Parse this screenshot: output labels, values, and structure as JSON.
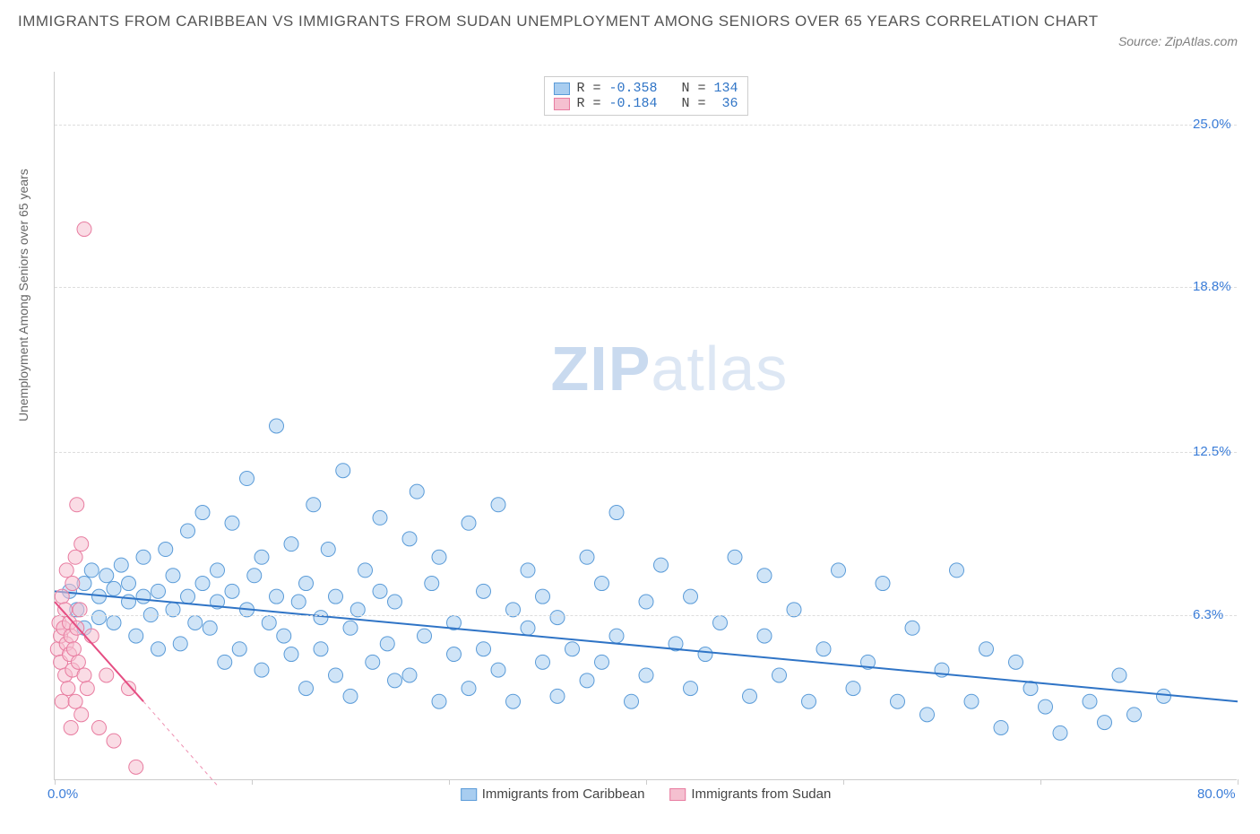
{
  "title": "IMMIGRANTS FROM CARIBBEAN VS IMMIGRANTS FROM SUDAN UNEMPLOYMENT AMONG SENIORS OVER 65 YEARS CORRELATION CHART",
  "source": "Source: ZipAtlas.com",
  "y_axis_label": "Unemployment Among Seniors over 65 years",
  "watermark_bold": "ZIP",
  "watermark_light": "atlas",
  "chart": {
    "type": "scatter",
    "xlim": [
      0,
      80
    ],
    "ylim": [
      0,
      27
    ],
    "x_ticks": [
      0,
      13.33,
      26.67,
      40,
      53.33,
      66.67,
      80
    ],
    "x_tick_labels": {
      "0": "0.0%",
      "80": "80.0%"
    },
    "y_ticks": [
      6.3,
      12.5,
      18.8,
      25.0
    ],
    "y_tick_labels": [
      "6.3%",
      "12.5%",
      "18.8%",
      "25.0%"
    ],
    "grid_color": "#dddddd",
    "background_color": "#ffffff",
    "axis_color": "#cccccc",
    "marker_radius": 8,
    "marker_opacity": 0.55,
    "series": [
      {
        "name": "Immigrants from Caribbean",
        "color_fill": "#a8cdf0",
        "color_stroke": "#5a9bd8",
        "trend_color": "#2f74c6",
        "trend_width": 2,
        "R": "-0.358",
        "N": "134",
        "trend": {
          "x1": 0,
          "y1": 7.2,
          "x2": 80,
          "y2": 3.0
        },
        "points": [
          [
            1,
            7.2
          ],
          [
            1.5,
            6.5
          ],
          [
            2,
            7.5
          ],
          [
            2,
            5.8
          ],
          [
            2.5,
            8.0
          ],
          [
            3,
            7.0
          ],
          [
            3,
            6.2
          ],
          [
            3.5,
            7.8
          ],
          [
            4,
            7.3
          ],
          [
            4,
            6.0
          ],
          [
            4.5,
            8.2
          ],
          [
            5,
            6.8
          ],
          [
            5,
            7.5
          ],
          [
            5.5,
            5.5
          ],
          [
            6,
            7.0
          ],
          [
            6,
            8.5
          ],
          [
            6.5,
            6.3
          ],
          [
            7,
            7.2
          ],
          [
            7,
            5.0
          ],
          [
            7.5,
            8.8
          ],
          [
            8,
            6.5
          ],
          [
            8,
            7.8
          ],
          [
            8.5,
            5.2
          ],
          [
            9,
            7.0
          ],
          [
            9,
            9.5
          ],
          [
            9.5,
            6.0
          ],
          [
            10,
            7.5
          ],
          [
            10,
            10.2
          ],
          [
            10.5,
            5.8
          ],
          [
            11,
            6.8
          ],
          [
            11,
            8.0
          ],
          [
            11.5,
            4.5
          ],
          [
            12,
            7.2
          ],
          [
            12,
            9.8
          ],
          [
            12.5,
            5.0
          ],
          [
            13,
            6.5
          ],
          [
            13,
            11.5
          ],
          [
            13.5,
            7.8
          ],
          [
            14,
            4.2
          ],
          [
            14,
            8.5
          ],
          [
            14.5,
            6.0
          ],
          [
            15,
            7.0
          ],
          [
            15,
            13.5
          ],
          [
            15.5,
            5.5
          ],
          [
            16,
            4.8
          ],
          [
            16,
            9.0
          ],
          [
            16.5,
            6.8
          ],
          [
            17,
            3.5
          ],
          [
            17,
            7.5
          ],
          [
            17.5,
            10.5
          ],
          [
            18,
            5.0
          ],
          [
            18,
            6.2
          ],
          [
            18.5,
            8.8
          ],
          [
            19,
            4.0
          ],
          [
            19,
            7.0
          ],
          [
            19.5,
            11.8
          ],
          [
            20,
            5.8
          ],
          [
            20,
            3.2
          ],
          [
            20.5,
            6.5
          ],
          [
            21,
            8.0
          ],
          [
            21.5,
            4.5
          ],
          [
            22,
            7.2
          ],
          [
            22,
            10.0
          ],
          [
            22.5,
            5.2
          ],
          [
            23,
            3.8
          ],
          [
            23,
            6.8
          ],
          [
            24,
            9.2
          ],
          [
            24,
            4.0
          ],
          [
            24.5,
            11.0
          ],
          [
            25,
            5.5
          ],
          [
            25.5,
            7.5
          ],
          [
            26,
            3.0
          ],
          [
            26,
            8.5
          ],
          [
            27,
            4.8
          ],
          [
            27,
            6.0
          ],
          [
            28,
            9.8
          ],
          [
            28,
            3.5
          ],
          [
            29,
            5.0
          ],
          [
            29,
            7.2
          ],
          [
            30,
            4.2
          ],
          [
            30,
            10.5
          ],
          [
            31,
            6.5
          ],
          [
            31,
            3.0
          ],
          [
            32,
            5.8
          ],
          [
            32,
            8.0
          ],
          [
            33,
            4.5
          ],
          [
            33,
            7.0
          ],
          [
            34,
            3.2
          ],
          [
            34,
            6.2
          ],
          [
            35,
            5.0
          ],
          [
            36,
            8.5
          ],
          [
            36,
            3.8
          ],
          [
            37,
            4.5
          ],
          [
            37,
            7.5
          ],
          [
            38,
            5.5
          ],
          [
            38,
            10.2
          ],
          [
            39,
            3.0
          ],
          [
            40,
            6.8
          ],
          [
            40,
            4.0
          ],
          [
            41,
            8.2
          ],
          [
            42,
            5.2
          ],
          [
            43,
            3.5
          ],
          [
            43,
            7.0
          ],
          [
            44,
            4.8
          ],
          [
            45,
            6.0
          ],
          [
            46,
            8.5
          ],
          [
            47,
            3.2
          ],
          [
            48,
            5.5
          ],
          [
            48,
            7.8
          ],
          [
            49,
            4.0
          ],
          [
            50,
            6.5
          ],
          [
            51,
            3.0
          ],
          [
            52,
            5.0
          ],
          [
            53,
            8.0
          ],
          [
            54,
            3.5
          ],
          [
            55,
            4.5
          ],
          [
            56,
            7.5
          ],
          [
            57,
            3.0
          ],
          [
            58,
            5.8
          ],
          [
            59,
            2.5
          ],
          [
            60,
            4.2
          ],
          [
            61,
            8.0
          ],
          [
            62,
            3.0
          ],
          [
            63,
            5.0
          ],
          [
            64,
            2.0
          ],
          [
            65,
            4.5
          ],
          [
            66,
            3.5
          ],
          [
            67,
            2.8
          ],
          [
            68,
            1.8
          ],
          [
            70,
            3.0
          ],
          [
            71,
            2.2
          ],
          [
            72,
            4.0
          ],
          [
            73,
            2.5
          ],
          [
            75,
            3.2
          ]
        ]
      },
      {
        "name": "Immigrants from Sudan",
        "color_fill": "#f5c0d0",
        "color_stroke": "#e87ca0",
        "trend_color": "#e54d82",
        "trend_width": 2,
        "R": "-0.184",
        "N": " 36",
        "trend": {
          "x1": 0,
          "y1": 6.8,
          "x2": 6,
          "y2": 3.0
        },
        "trend_dashed_extend": {
          "x1": 6,
          "y1": 3.0,
          "x2": 11,
          "y2": -0.2
        },
        "points": [
          [
            0.2,
            5.0
          ],
          [
            0.3,
            6.0
          ],
          [
            0.4,
            5.5
          ],
          [
            0.4,
            4.5
          ],
          [
            0.5,
            7.0
          ],
          [
            0.5,
            3.0
          ],
          [
            0.6,
            5.8
          ],
          [
            0.7,
            6.5
          ],
          [
            0.7,
            4.0
          ],
          [
            0.8,
            5.2
          ],
          [
            0.8,
            8.0
          ],
          [
            0.9,
            3.5
          ],
          [
            1.0,
            6.0
          ],
          [
            1.0,
            4.8
          ],
          [
            1.1,
            5.5
          ],
          [
            1.1,
            2.0
          ],
          [
            1.2,
            7.5
          ],
          [
            1.2,
            4.2
          ],
          [
            1.3,
            5.0
          ],
          [
            1.4,
            8.5
          ],
          [
            1.4,
            3.0
          ],
          [
            1.5,
            5.8
          ],
          [
            1.5,
            10.5
          ],
          [
            1.6,
            4.5
          ],
          [
            1.7,
            6.5
          ],
          [
            1.8,
            2.5
          ],
          [
            1.8,
            9.0
          ],
          [
            2.0,
            4.0
          ],
          [
            2.0,
            21.0
          ],
          [
            2.2,
            3.5
          ],
          [
            2.5,
            5.5
          ],
          [
            3.0,
            2.0
          ],
          [
            3.5,
            4.0
          ],
          [
            4.0,
            1.5
          ],
          [
            5.0,
            3.5
          ],
          [
            5.5,
            0.5
          ]
        ]
      }
    ]
  },
  "bottom_legend": [
    {
      "label": "Immigrants from Caribbean",
      "fill": "#a8cdf0",
      "stroke": "#5a9bd8"
    },
    {
      "label": "Immigrants from Sudan",
      "fill": "#f5c0d0",
      "stroke": "#e87ca0"
    }
  ]
}
